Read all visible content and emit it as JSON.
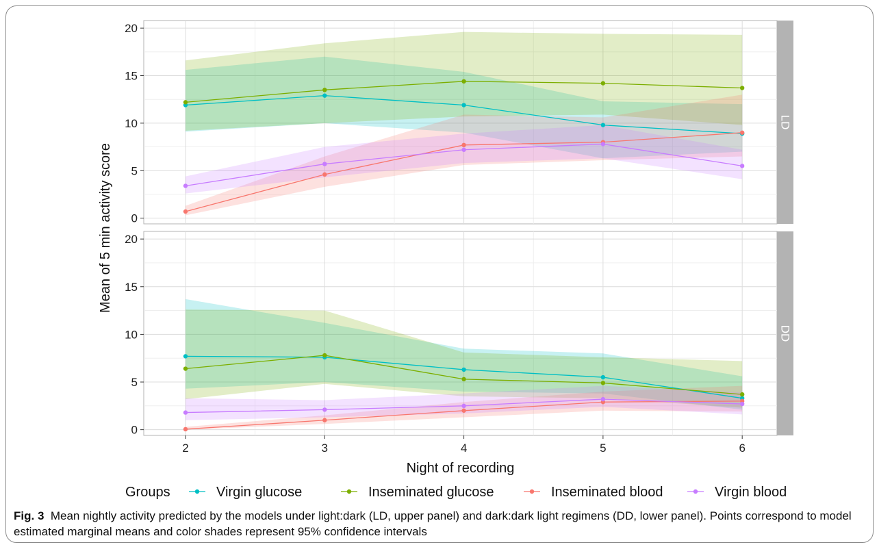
{
  "chart_data": {
    "type": "line",
    "xlabel": "Night of recording",
    "ylabel": "Mean of 5 min activity score",
    "x": [
      2,
      3,
      4,
      5,
      6
    ],
    "xlim": [
      1.7,
      6.25
    ],
    "ylim": [
      -0.6,
      20.8
    ],
    "x_ticks": [
      "2",
      "3",
      "4",
      "5",
      "6"
    ],
    "y_ticks": [
      "0",
      "5",
      "10",
      "15",
      "20"
    ],
    "grid": true,
    "legend_title": "Groups",
    "legend_position": "bottom",
    "series_meta": [
      {
        "name": "Virgin glucose",
        "color": "#00BFC4"
      },
      {
        "name": "Inseminated glucose",
        "color": "#7CAE00"
      },
      {
        "name": "Inseminated blood",
        "color": "#F8766D"
      },
      {
        "name": "Virgin blood",
        "color": "#C77CFF"
      }
    ],
    "panels": [
      {
        "strip_label": "LD",
        "series": [
          {
            "name": "Virgin glucose",
            "values": [
              11.9,
              12.9,
              11.9,
              9.8,
              8.9
            ],
            "lower": [
              9.1,
              10.0,
              9.0,
              6.3,
              7.0
            ],
            "upper": [
              15.6,
              17.0,
              15.4,
              12.3,
              12.0
            ]
          },
          {
            "name": "Inseminated glucose",
            "values": [
              12.2,
              13.5,
              14.4,
              14.2,
              13.7
            ],
            "lower": [
              9.2,
              10.0,
              10.7,
              10.9,
              9.8
            ],
            "upper": [
              16.6,
              18.4,
              19.6,
              19.4,
              19.3
            ]
          },
          {
            "name": "Inseminated blood",
            "values": [
              0.7,
              4.6,
              7.7,
              8.0,
              9.0
            ],
            "lower": [
              0.3,
              3.3,
              5.6,
              6.1,
              6.5
            ],
            "upper": [
              1.3,
              6.5,
              10.9,
              10.6,
              13.0
            ]
          },
          {
            "name": "Virgin blood",
            "values": [
              3.4,
              5.7,
              7.2,
              7.8,
              5.5
            ],
            "lower": [
              2.6,
              4.3,
              5.8,
              6.3,
              4.1
            ],
            "upper": [
              4.4,
              7.5,
              8.9,
              9.8,
              7.2
            ]
          }
        ]
      },
      {
        "strip_label": "DD",
        "series": [
          {
            "name": "Virgin glucose",
            "values": [
              7.7,
              7.6,
              6.3,
              5.5,
              3.3
            ],
            "lower": [
              4.3,
              5.0,
              4.0,
              3.8,
              2.1
            ],
            "upper": [
              13.7,
              11.2,
              8.5,
              8.0,
              5.6
            ]
          },
          {
            "name": "Inseminated glucose",
            "values": [
              6.4,
              7.8,
              5.3,
              4.9,
              3.7
            ],
            "lower": [
              3.2,
              4.8,
              3.5,
              3.3,
              2.3
            ],
            "upper": [
              12.6,
              12.5,
              8.1,
              7.6,
              7.2
            ]
          },
          {
            "name": "Inseminated blood",
            "values": [
              0.05,
              1.0,
              2.0,
              2.9,
              3.0
            ],
            "lower": [
              0.0,
              0.6,
              1.3,
              2.0,
              1.9
            ],
            "upper": [
              0.3,
              1.5,
              2.9,
              4.0,
              4.6
            ]
          },
          {
            "name": "Virgin blood",
            "values": [
              1.8,
              2.1,
              2.5,
              3.2,
              2.7
            ],
            "lower": [
              1.0,
              1.3,
              1.7,
              2.4,
              1.6
            ],
            "upper": [
              3.3,
              3.1,
              3.8,
              4.6,
              3.9
            ]
          }
        ]
      }
    ]
  },
  "caption": {
    "lead": "Fig. 3",
    "text": "Mean nightly activity predicted by the models under light:dark (LD, upper panel) and dark:dark light regimens (DD, lower panel). Points correspond to model estimated marginal means and color shades represent 95% confidence intervals"
  }
}
